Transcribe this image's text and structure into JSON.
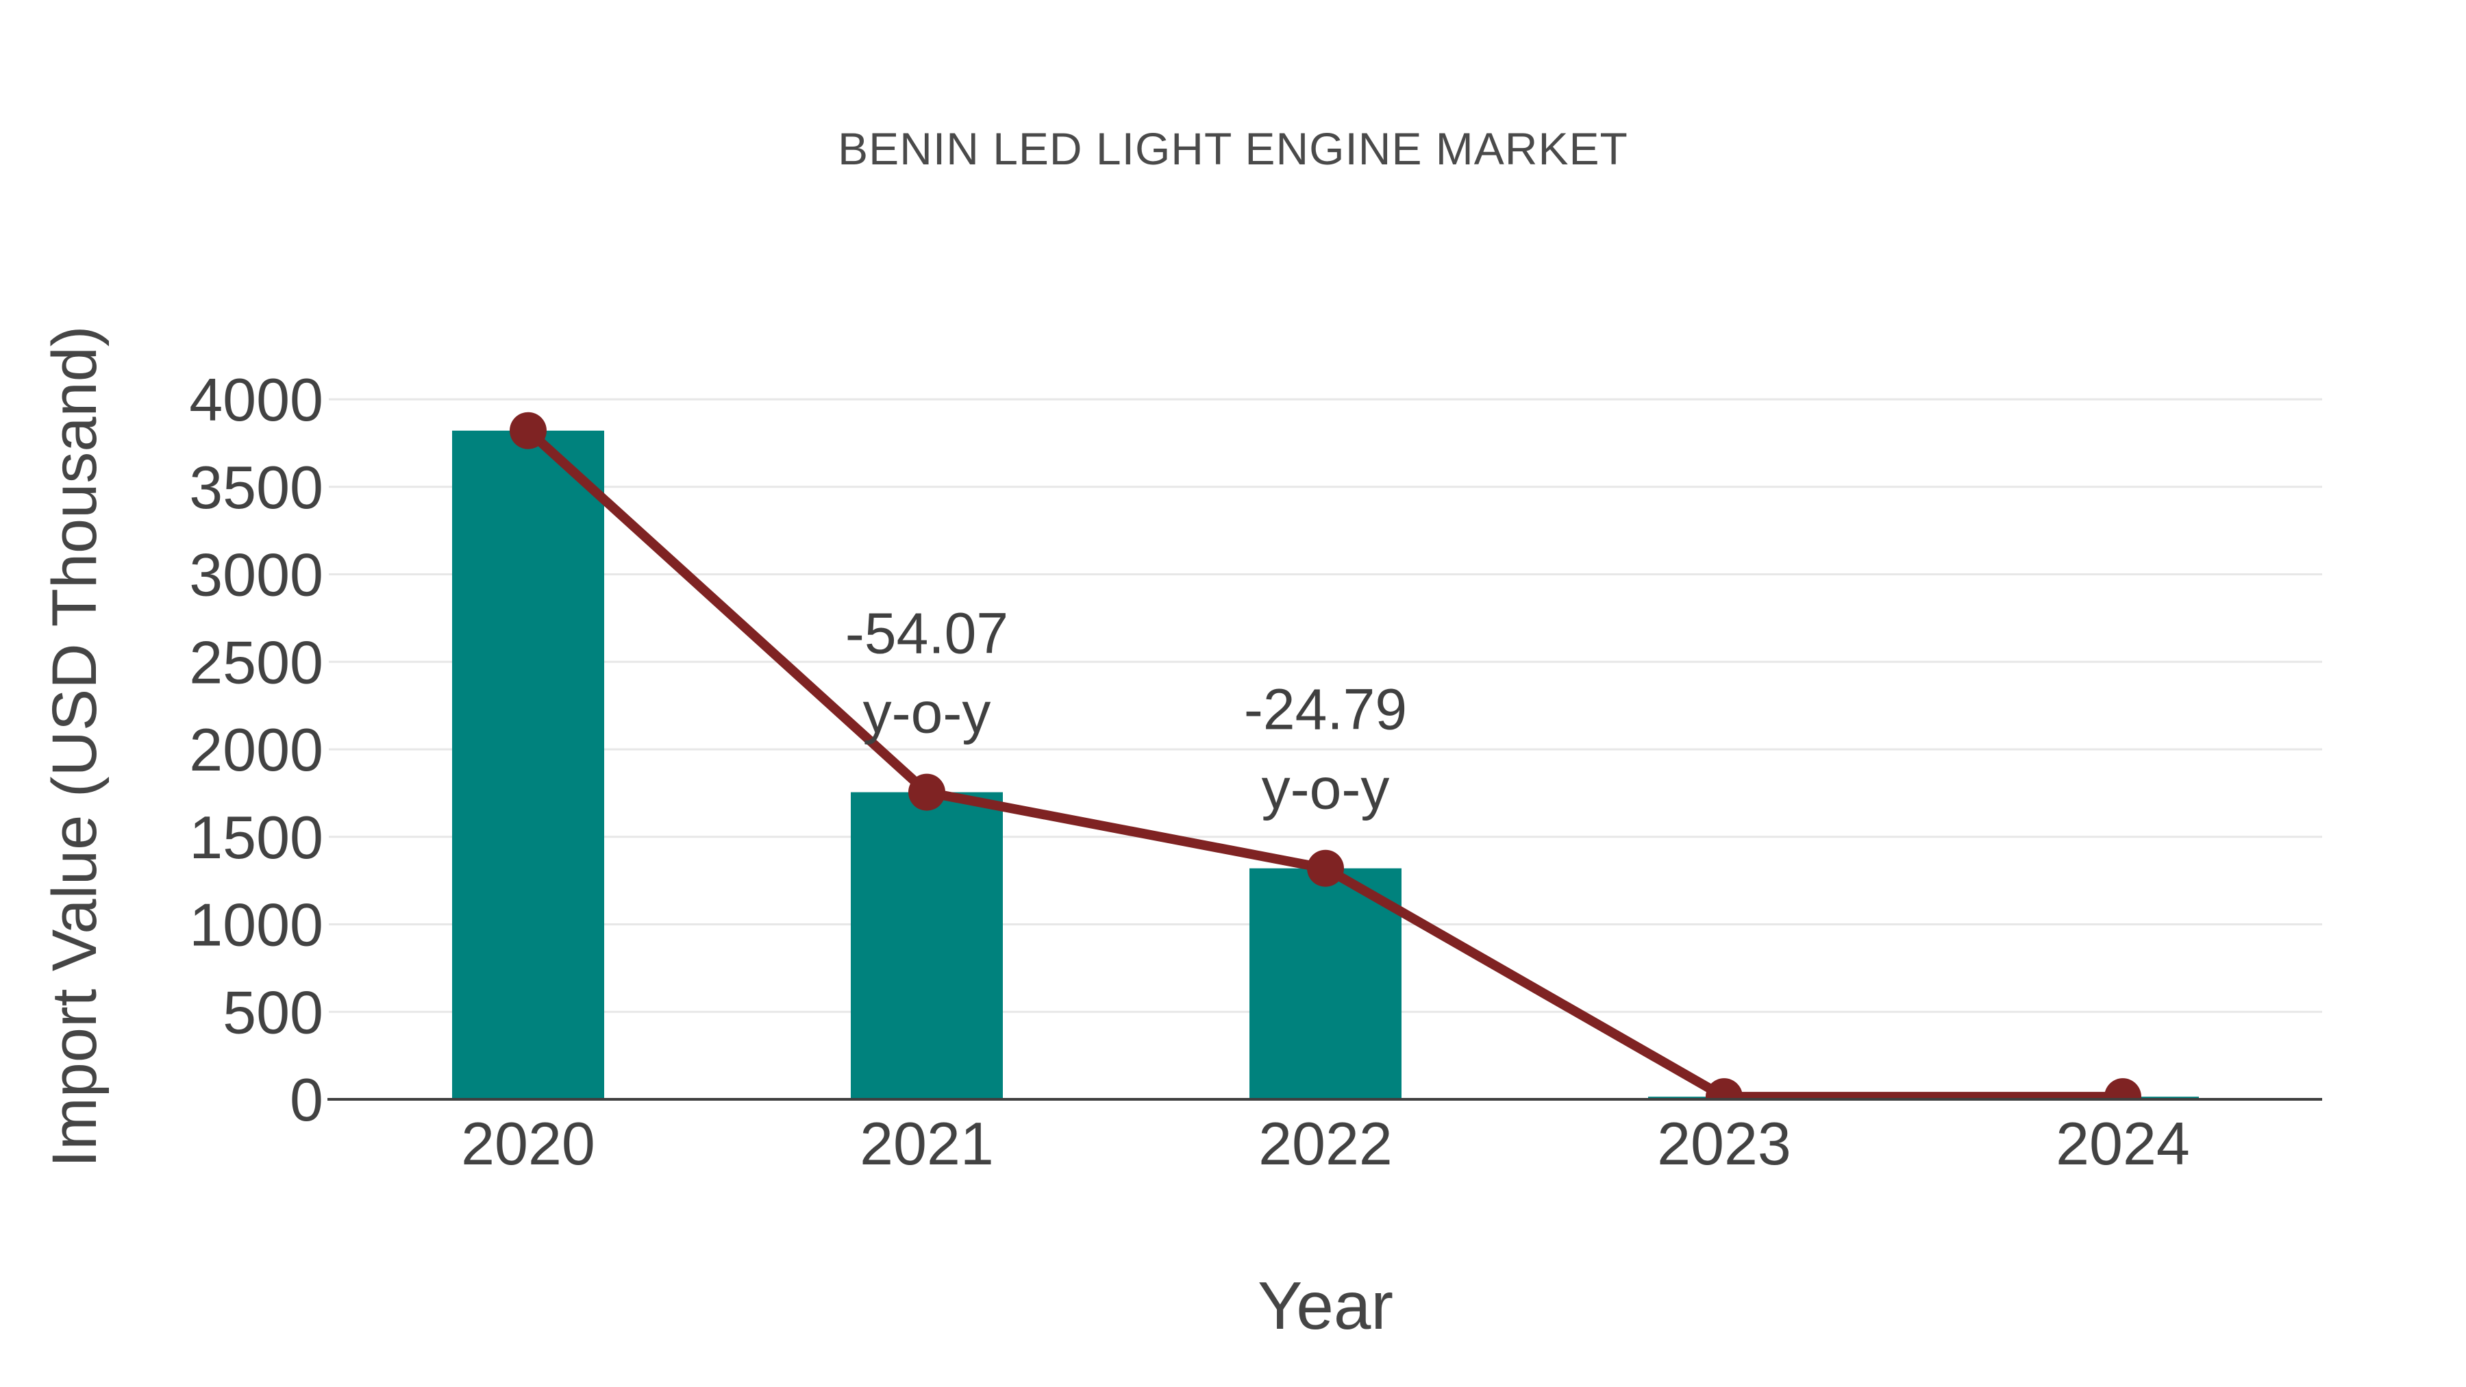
{
  "page": {
    "background": "#ffffff"
  },
  "chart_data": {
    "type": "bar",
    "title": "BENIN LED LIGHT ENGINE MARKET",
    "xlabel": "Year",
    "ylabel": "Import Value (USD Thousand)",
    "categories": [
      "2020",
      "2021",
      "2022",
      "2023",
      "2024"
    ],
    "series": [
      {
        "name": "import-value-bars",
        "type": "bar",
        "color": "#00827d",
        "values": [
          3821,
          1755,
          1320,
          15,
          15
        ]
      },
      {
        "name": "import-value-line",
        "type": "line",
        "color": "#7f2323",
        "values": [
          3821,
          1755,
          1320,
          15,
          15
        ]
      }
    ],
    "annotations": [
      {
        "category": "2021",
        "line1": "-54.07",
        "line2": "y-o-y"
      },
      {
        "category": "2022",
        "line1": "-24.79",
        "line2": "y-o-y"
      }
    ],
    "ylim": [
      0,
      4000
    ],
    "ytick_step": 500,
    "yticks": [
      0,
      500,
      1000,
      1500,
      2000,
      2500,
      3000,
      3500,
      4000
    ],
    "grid": true,
    "legend": "none",
    "style": {
      "bar_color": "#00827d",
      "line_color": "#7f2323",
      "grid_color": "#e7e7e7",
      "axis_color": "#3f3f3f",
      "text_color": "#424242"
    }
  }
}
